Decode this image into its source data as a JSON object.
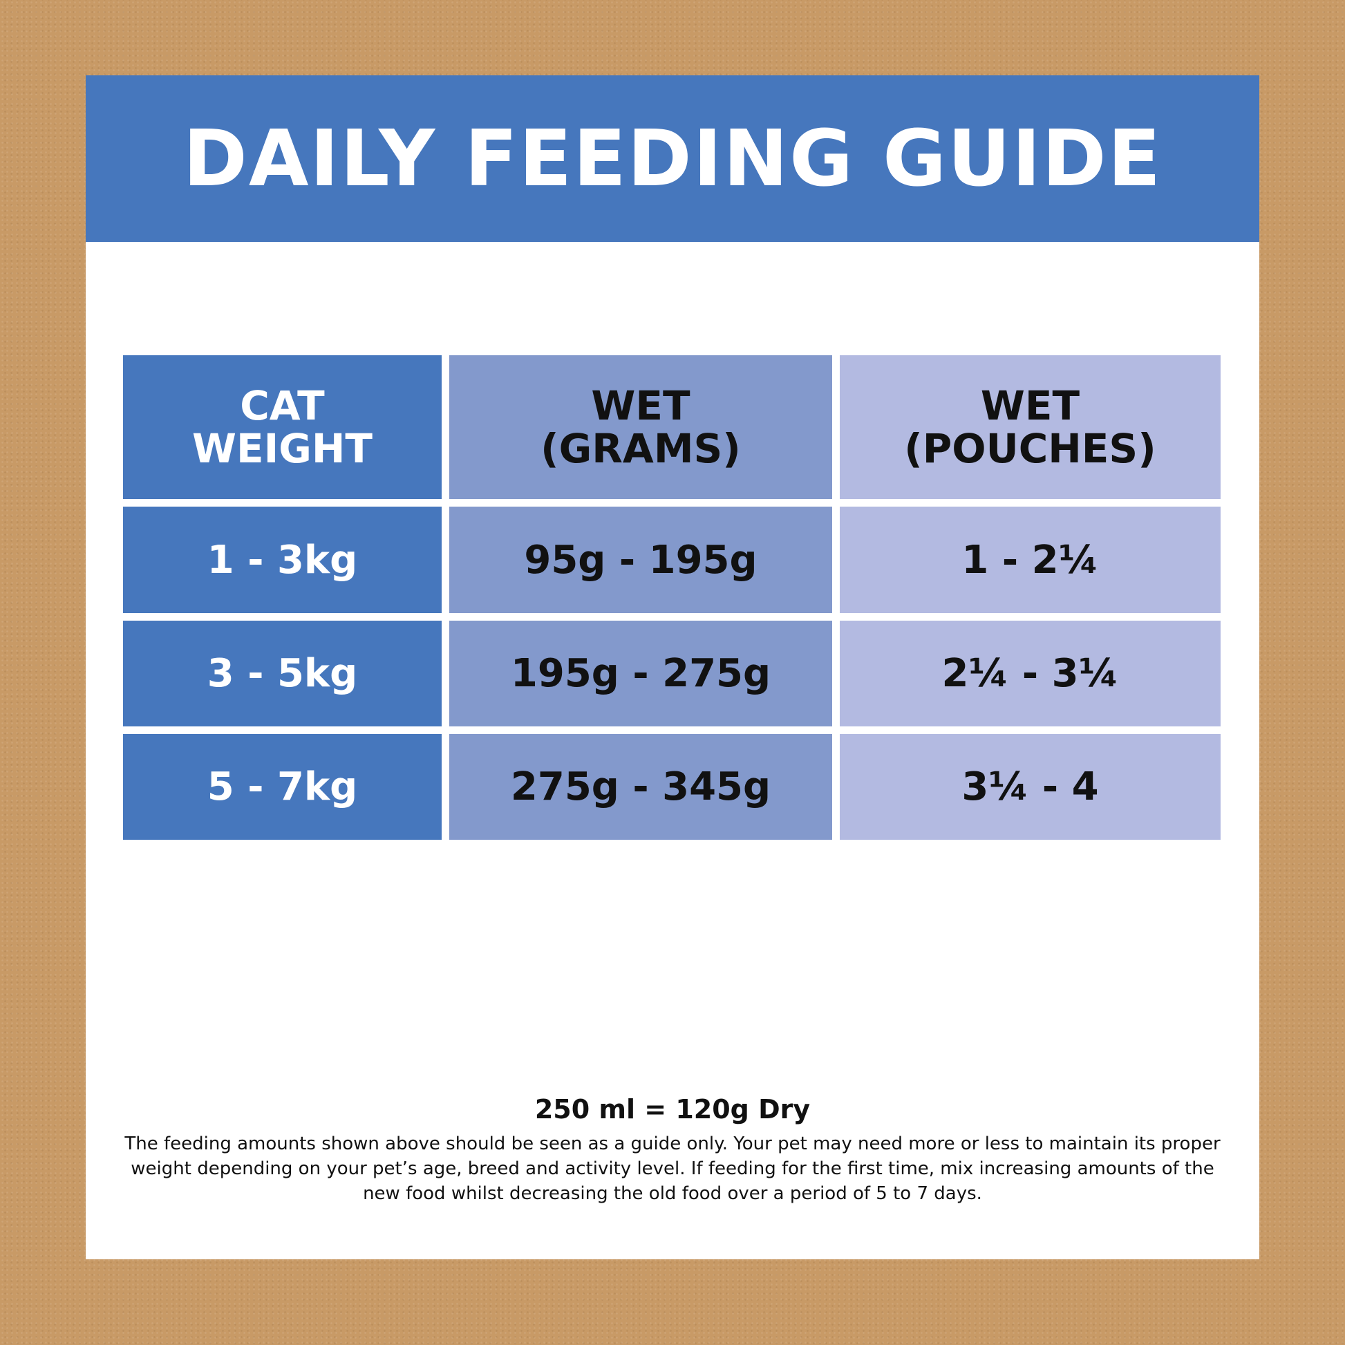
{
  "title": "DAILY FEEDING GUIDE",
  "table": {
    "headers": [
      "CAT\nWEIGHT",
      "WET\n(GRAMS)",
      "WET\n(POUCHES)"
    ],
    "rows": [
      [
        "1 - 3kg",
        "95g - 195g",
        "1 - 2¼"
      ],
      [
        "3 - 5kg",
        "195g - 275g",
        "2¼ - 3¼"
      ],
      [
        "5 - 7kg",
        "275g - 345g",
        "3¼ - 4"
      ]
    ]
  },
  "footer": {
    "conversion": "250 ml = 120g Dry",
    "note": "The feeding amounts shown above should be seen as a guide only. Your pet may need more or less to maintain its proper weight depending on your pet’s age, breed and activity level. If feeding for the first time, mix increasing amounts of the new food whilst decreasing the old food over a period of 5 to 7 days."
  },
  "colors": {
    "background": "#c89a66",
    "banner": "#4677bd",
    "col_weight": "#4677bd",
    "col_grams": "#8399cc",
    "col_pouches": "#b3bae1"
  }
}
